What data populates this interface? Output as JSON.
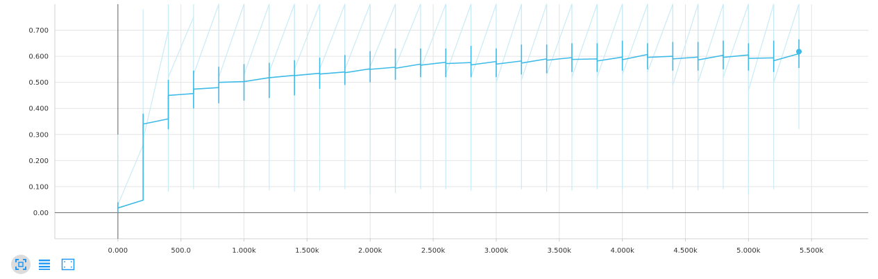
{
  "chart_data": {
    "type": "line",
    "title": "",
    "xlabel": "",
    "ylabel": "",
    "xlim": [
      -500,
      5950
    ],
    "ylim": [
      -0.1,
      0.8
    ],
    "grid": true,
    "x_ticks": [
      0,
      500,
      1000,
      1500,
      2000,
      2500,
      3000,
      3500,
      4000,
      4500,
      5000,
      5500
    ],
    "x_tick_labels": [
      "0.000",
      "500.0",
      "1.000k",
      "1.500k",
      "2.000k",
      "2.500k",
      "3.000k",
      "3.500k",
      "4.000k",
      "4.500k",
      "5.000k",
      "5.500k"
    ],
    "y_ticks": [
      0,
      0.1,
      0.2,
      0.3,
      0.4,
      0.5,
      0.6,
      0.7
    ],
    "y_tick_labels": [
      "0.00",
      "0.100",
      "0.200",
      "0.300",
      "0.400",
      "0.500",
      "0.600",
      "0.700"
    ],
    "series": [
      {
        "color": "#3dbae8",
        "points": [
          {
            "x": 0,
            "y_start": 0.018,
            "y_end": 0.048,
            "err_low": 0.0,
            "err_high": 0.04
          },
          {
            "x": 200,
            "y_start": 0.34,
            "y_end": 0.36,
            "err_low": 0.3,
            "err_high": 0.38
          },
          {
            "x": 400,
            "y_start": 0.45,
            "y_end": 0.457,
            "err_low": 0.32,
            "err_high": 0.51
          },
          {
            "x": 600,
            "y_start": 0.474,
            "y_end": 0.48,
            "err_low": 0.4,
            "err_high": 0.545
          },
          {
            "x": 800,
            "y_start": 0.5,
            "y_end": 0.503,
            "err_low": 0.42,
            "err_high": 0.56
          },
          {
            "x": 1000,
            "y_start": 0.503,
            "y_end": 0.518,
            "err_low": 0.43,
            "err_high": 0.57
          },
          {
            "x": 1200,
            "y_start": 0.518,
            "y_end": 0.527,
            "err_low": 0.44,
            "err_high": 0.575
          },
          {
            "x": 1400,
            "y_start": 0.526,
            "y_end": 0.535,
            "err_low": 0.45,
            "err_high": 0.585
          },
          {
            "x": 1600,
            "y_start": 0.532,
            "y_end": 0.54,
            "err_low": 0.475,
            "err_high": 0.595
          },
          {
            "x": 1800,
            "y_start": 0.537,
            "y_end": 0.552,
            "err_low": 0.49,
            "err_high": 0.605
          },
          {
            "x": 2000,
            "y_start": 0.55,
            "y_end": 0.558,
            "err_low": 0.5,
            "err_high": 0.62
          },
          {
            "x": 2200,
            "y_start": 0.554,
            "y_end": 0.57,
            "err_low": 0.51,
            "err_high": 0.63
          },
          {
            "x": 2400,
            "y_start": 0.566,
            "y_end": 0.577,
            "err_low": 0.52,
            "err_high": 0.63
          },
          {
            "x": 2600,
            "y_start": 0.572,
            "y_end": 0.576,
            "err_low": 0.52,
            "err_high": 0.63
          },
          {
            "x": 2800,
            "y_start": 0.567,
            "y_end": 0.58,
            "err_low": 0.52,
            "err_high": 0.64
          },
          {
            "x": 3000,
            "y_start": 0.57,
            "y_end": 0.582,
            "err_low": 0.52,
            "err_high": 0.63
          },
          {
            "x": 3200,
            "y_start": 0.574,
            "y_end": 0.59,
            "err_low": 0.53,
            "err_high": 0.645
          },
          {
            "x": 3400,
            "y_start": 0.585,
            "y_end": 0.595,
            "err_low": 0.535,
            "err_high": 0.645
          },
          {
            "x": 3600,
            "y_start": 0.588,
            "y_end": 0.59,
            "err_low": 0.54,
            "err_high": 0.65
          },
          {
            "x": 3800,
            "y_start": 0.582,
            "y_end": 0.597,
            "err_low": 0.54,
            "err_high": 0.65
          },
          {
            "x": 4000,
            "y_start": 0.587,
            "y_end": 0.607,
            "err_low": 0.545,
            "err_high": 0.66
          },
          {
            "x": 4200,
            "y_start": 0.596,
            "y_end": 0.6,
            "err_low": 0.55,
            "err_high": 0.65
          },
          {
            "x": 4400,
            "y_start": 0.59,
            "y_end": 0.597,
            "err_low": 0.545,
            "err_high": 0.655
          },
          {
            "x": 4600,
            "y_start": 0.586,
            "y_end": 0.604,
            "err_low": 0.545,
            "err_high": 0.655
          },
          {
            "x": 4800,
            "y_start": 0.596,
            "y_end": 0.605,
            "err_low": 0.55,
            "err_high": 0.66
          },
          {
            "x": 5000,
            "y_start": 0.592,
            "y_end": 0.594,
            "err_low": 0.545,
            "err_high": 0.65
          },
          {
            "x": 5200,
            "y_start": 0.583,
            "y_end": 0.61,
            "err_low": 0.54,
            "err_high": 0.66
          },
          {
            "x": 5400,
            "y_start": 0.602,
            "y_end": 0.618,
            "err_low": 0.555,
            "err_high": 0.665
          }
        ],
        "last_point": {
          "x": 5400,
          "y": 0.618
        }
      },
      {
        "color": "#c9ebf7",
        "style": "faint",
        "points": [
          {
            "x": 0,
            "y_start": 0.03,
            "y_end": 0.26,
            "err_low": 0.0,
            "err_high": 0.3
          },
          {
            "x": 200,
            "y_start": 0.28,
            "y_end": 0.7,
            "err_low": 0.08,
            "err_high": 0.78
          },
          {
            "x": 400,
            "y_start": 0.52,
            "y_end": 0.75,
            "err_low": 0.08,
            "err_high": 0.8
          },
          {
            "x": 600,
            "y_start": 0.53,
            "y_end": 0.8,
            "err_low": 0.09,
            "err_high": 0.8
          },
          {
            "x": 800,
            "y_start": 0.52,
            "y_end": 0.8,
            "err_low": 0.095,
            "err_high": 0.8
          },
          {
            "x": 1000,
            "y_start": 0.53,
            "y_end": 0.8,
            "err_low": 0.09,
            "err_high": 0.8
          },
          {
            "x": 1200,
            "y_start": 0.54,
            "y_end": 0.8,
            "err_low": 0.085,
            "err_high": 0.8
          },
          {
            "x": 1400,
            "y_start": 0.55,
            "y_end": 0.8,
            "err_low": 0.08,
            "err_high": 0.8
          },
          {
            "x": 1600,
            "y_start": 0.55,
            "y_end": 0.8,
            "err_low": 0.085,
            "err_high": 0.8
          },
          {
            "x": 1800,
            "y_start": 0.55,
            "y_end": 0.8,
            "err_low": 0.09,
            "err_high": 0.8
          },
          {
            "x": 2000,
            "y_start": 0.56,
            "y_end": 0.8,
            "err_low": 0.07,
            "err_high": 0.8
          },
          {
            "x": 2200,
            "y_start": 0.56,
            "y_end": 0.8,
            "err_low": 0.075,
            "err_high": 0.8
          },
          {
            "x": 2400,
            "y_start": 0.55,
            "y_end": 0.8,
            "err_low": 0.09,
            "err_high": 0.8
          },
          {
            "x": 2600,
            "y_start": 0.53,
            "y_end": 0.8,
            "err_low": 0.09,
            "err_high": 0.8
          },
          {
            "x": 2800,
            "y_start": 0.52,
            "y_end": 0.8,
            "err_low": 0.085,
            "err_high": 0.8
          },
          {
            "x": 3000,
            "y_start": 0.5,
            "y_end": 0.8,
            "err_low": 0.09,
            "err_high": 0.8
          },
          {
            "x": 3200,
            "y_start": 0.51,
            "y_end": 0.8,
            "err_low": 0.09,
            "err_high": 0.8
          },
          {
            "x": 3400,
            "y_start": 0.53,
            "y_end": 0.8,
            "err_low": 0.08,
            "err_high": 0.8
          },
          {
            "x": 3600,
            "y_start": 0.52,
            "y_end": 0.8,
            "err_low": 0.085,
            "err_high": 0.8
          },
          {
            "x": 3800,
            "y_start": 0.52,
            "y_end": 0.8,
            "err_low": 0.09,
            "err_high": 0.8
          },
          {
            "x": 4000,
            "y_start": 0.53,
            "y_end": 0.8,
            "err_low": 0.09,
            "err_high": 0.8
          },
          {
            "x": 4200,
            "y_start": 0.54,
            "y_end": 0.8,
            "err_low": 0.09,
            "err_high": 0.8
          },
          {
            "x": 4400,
            "y_start": 0.49,
            "y_end": 0.8,
            "err_low": 0.09,
            "err_high": 0.8
          },
          {
            "x": 4600,
            "y_start": 0.5,
            "y_end": 0.8,
            "err_low": 0.085,
            "err_high": 0.8
          },
          {
            "x": 4800,
            "y_start": 0.52,
            "y_end": 0.8,
            "err_low": 0.09,
            "err_high": 0.8
          },
          {
            "x": 5000,
            "y_start": 0.47,
            "y_end": 0.8,
            "err_low": 0.07,
            "err_high": 0.8
          },
          {
            "x": 5200,
            "y_start": 0.5,
            "y_end": 0.8,
            "err_low": 0.09,
            "err_high": 0.8
          },
          {
            "x": 5400,
            "y_start": 0.49,
            "y_end": 0.5,
            "err_low": 0.32,
            "err_high": 0.75
          }
        ]
      }
    ]
  },
  "toolbar": {
    "buttons": [
      {
        "icon": "fit-screen-icon",
        "active": true
      },
      {
        "icon": "list-lines-icon",
        "active": false
      },
      {
        "icon": "select-region-icon",
        "active": false
      }
    ],
    "accent_color": "#2196f3"
  }
}
